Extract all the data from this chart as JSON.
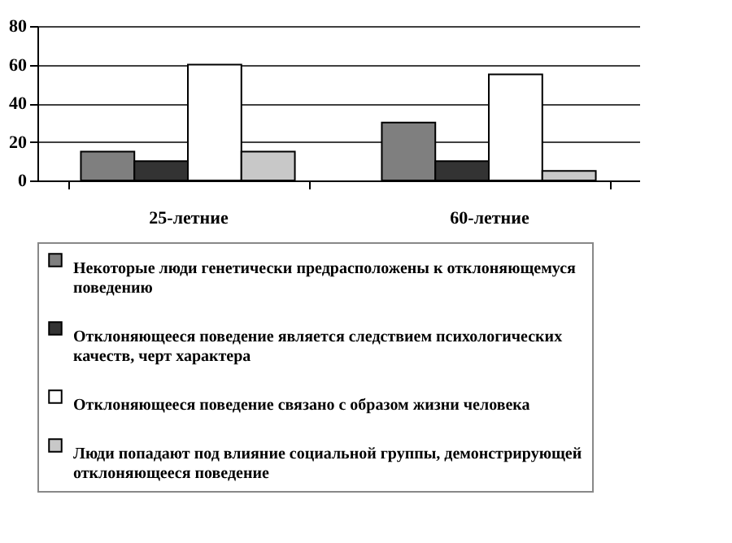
{
  "chart_data": {
    "type": "bar",
    "categories": [
      "25-летние",
      "60-летние"
    ],
    "series": [
      {
        "name": "Некоторые люди генетически предрасположены к отклоняющемуся поведению",
        "color": "#7f7f7f",
        "values": [
          15,
          30
        ]
      },
      {
        "name": "Отклоняющееся поведение является  следствием психологических качеств, черт характера",
        "color": "#333333",
        "values": [
          10,
          10
        ]
      },
      {
        "name": "Отклоняющееся поведение связано с образом жизни человека",
        "color": "#ffffff",
        "values": [
          60,
          55
        ]
      },
      {
        "name": "Люди попадают под влияние социальной группы, демонстрирующей отклоняющееся поведение",
        "color": "#c8c8c8",
        "values": [
          15,
          5
        ]
      }
    ],
    "ylim": [
      0,
      80
    ],
    "yticks": [
      0,
      20,
      40,
      60,
      80
    ],
    "grid": "y",
    "legend": "bottom"
  }
}
